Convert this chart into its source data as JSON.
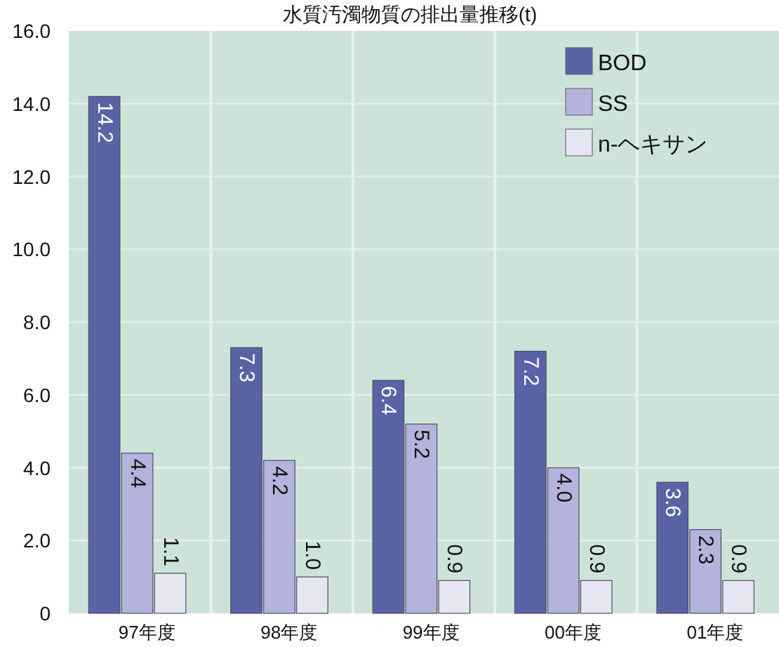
{
  "chart_data": {
    "type": "bar",
    "title": "水質汚濁物質の排出量推移(t)",
    "categories": [
      "97年度",
      "98年度",
      "99年度",
      "00年度",
      "01年度"
    ],
    "series": [
      {
        "name": "BOD",
        "color": "#5a62a6",
        "values": [
          14.2,
          7.3,
          6.4,
          7.2,
          3.6
        ],
        "value_labels": [
          "14.2",
          "7.3",
          "6.4",
          "7.2",
          "3.6"
        ]
      },
      {
        "name": "SS",
        "color": "#b4b3dc",
        "values": [
          4.4,
          4.2,
          5.2,
          4.0,
          2.3
        ],
        "value_labels": [
          "4.4",
          "4.2",
          "5.2",
          "4.0",
          "2.3"
        ]
      },
      {
        "name": "n-ヘキサン",
        "color": "#e6e6f2",
        "values": [
          1.1,
          1.0,
          0.9,
          0.9,
          0.9
        ],
        "value_labels": [
          "1.1",
          "1.0",
          "0.9",
          "0.9",
          "0.9"
        ]
      }
    ],
    "ylim": [
      0,
      16
    ],
    "yticks": [
      0,
      {
        "value": 2,
        "label": "2.0"
      },
      {
        "value": 4,
        "label": "4.0"
      },
      {
        "value": 6,
        "label": "6.0"
      },
      {
        "value": 8,
        "label": "8.0"
      },
      {
        "value": 10,
        "label": "10.0"
      },
      {
        "value": 12,
        "label": "12.0"
      },
      {
        "value": 14,
        "label": "14.0"
      },
      {
        "value": 16,
        "label": "16.0"
      }
    ],
    "grid": true,
    "legend": "top right"
  }
}
